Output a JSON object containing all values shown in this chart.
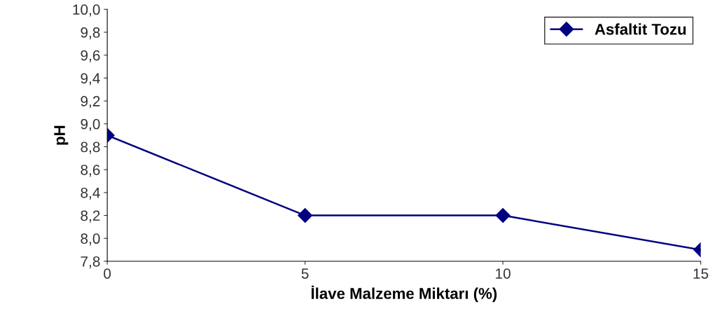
{
  "chart_data": {
    "type": "line",
    "xlabel": "İlave Malzeme Miktarı (%)",
    "ylabel": "pH",
    "x": [
      0,
      5,
      10,
      15
    ],
    "series": [
      {
        "name": "Asfaltit Tozu",
        "color": "#000080",
        "values": [
          8.9,
          8.2,
          8.2,
          7.9
        ]
      }
    ],
    "xlim": [
      0,
      15
    ],
    "xticks": [
      0,
      5,
      10,
      15
    ],
    "ylim": [
      7.8,
      10.0
    ],
    "yticks": [
      {
        "value": 7.8,
        "label": "7,8"
      },
      {
        "value": 8.0,
        "label": "8,0"
      },
      {
        "value": 8.2,
        "label": "8,2"
      },
      {
        "value": 8.4,
        "label": "8,4"
      },
      {
        "value": 8.6,
        "label": "8,6"
      },
      {
        "value": 8.8,
        "label": "8,8"
      },
      {
        "value": 9.0,
        "label": "9,0"
      },
      {
        "value": 9.2,
        "label": "9,2"
      },
      {
        "value": 9.4,
        "label": "9,4"
      },
      {
        "value": 9.6,
        "label": "9,6"
      },
      {
        "value": 9.8,
        "label": "9,8"
      },
      {
        "value": 10.0,
        "label": "10,0"
      }
    ],
    "marker": "diamond",
    "line_style": "solid",
    "grid": false,
    "legend": "top right"
  }
}
